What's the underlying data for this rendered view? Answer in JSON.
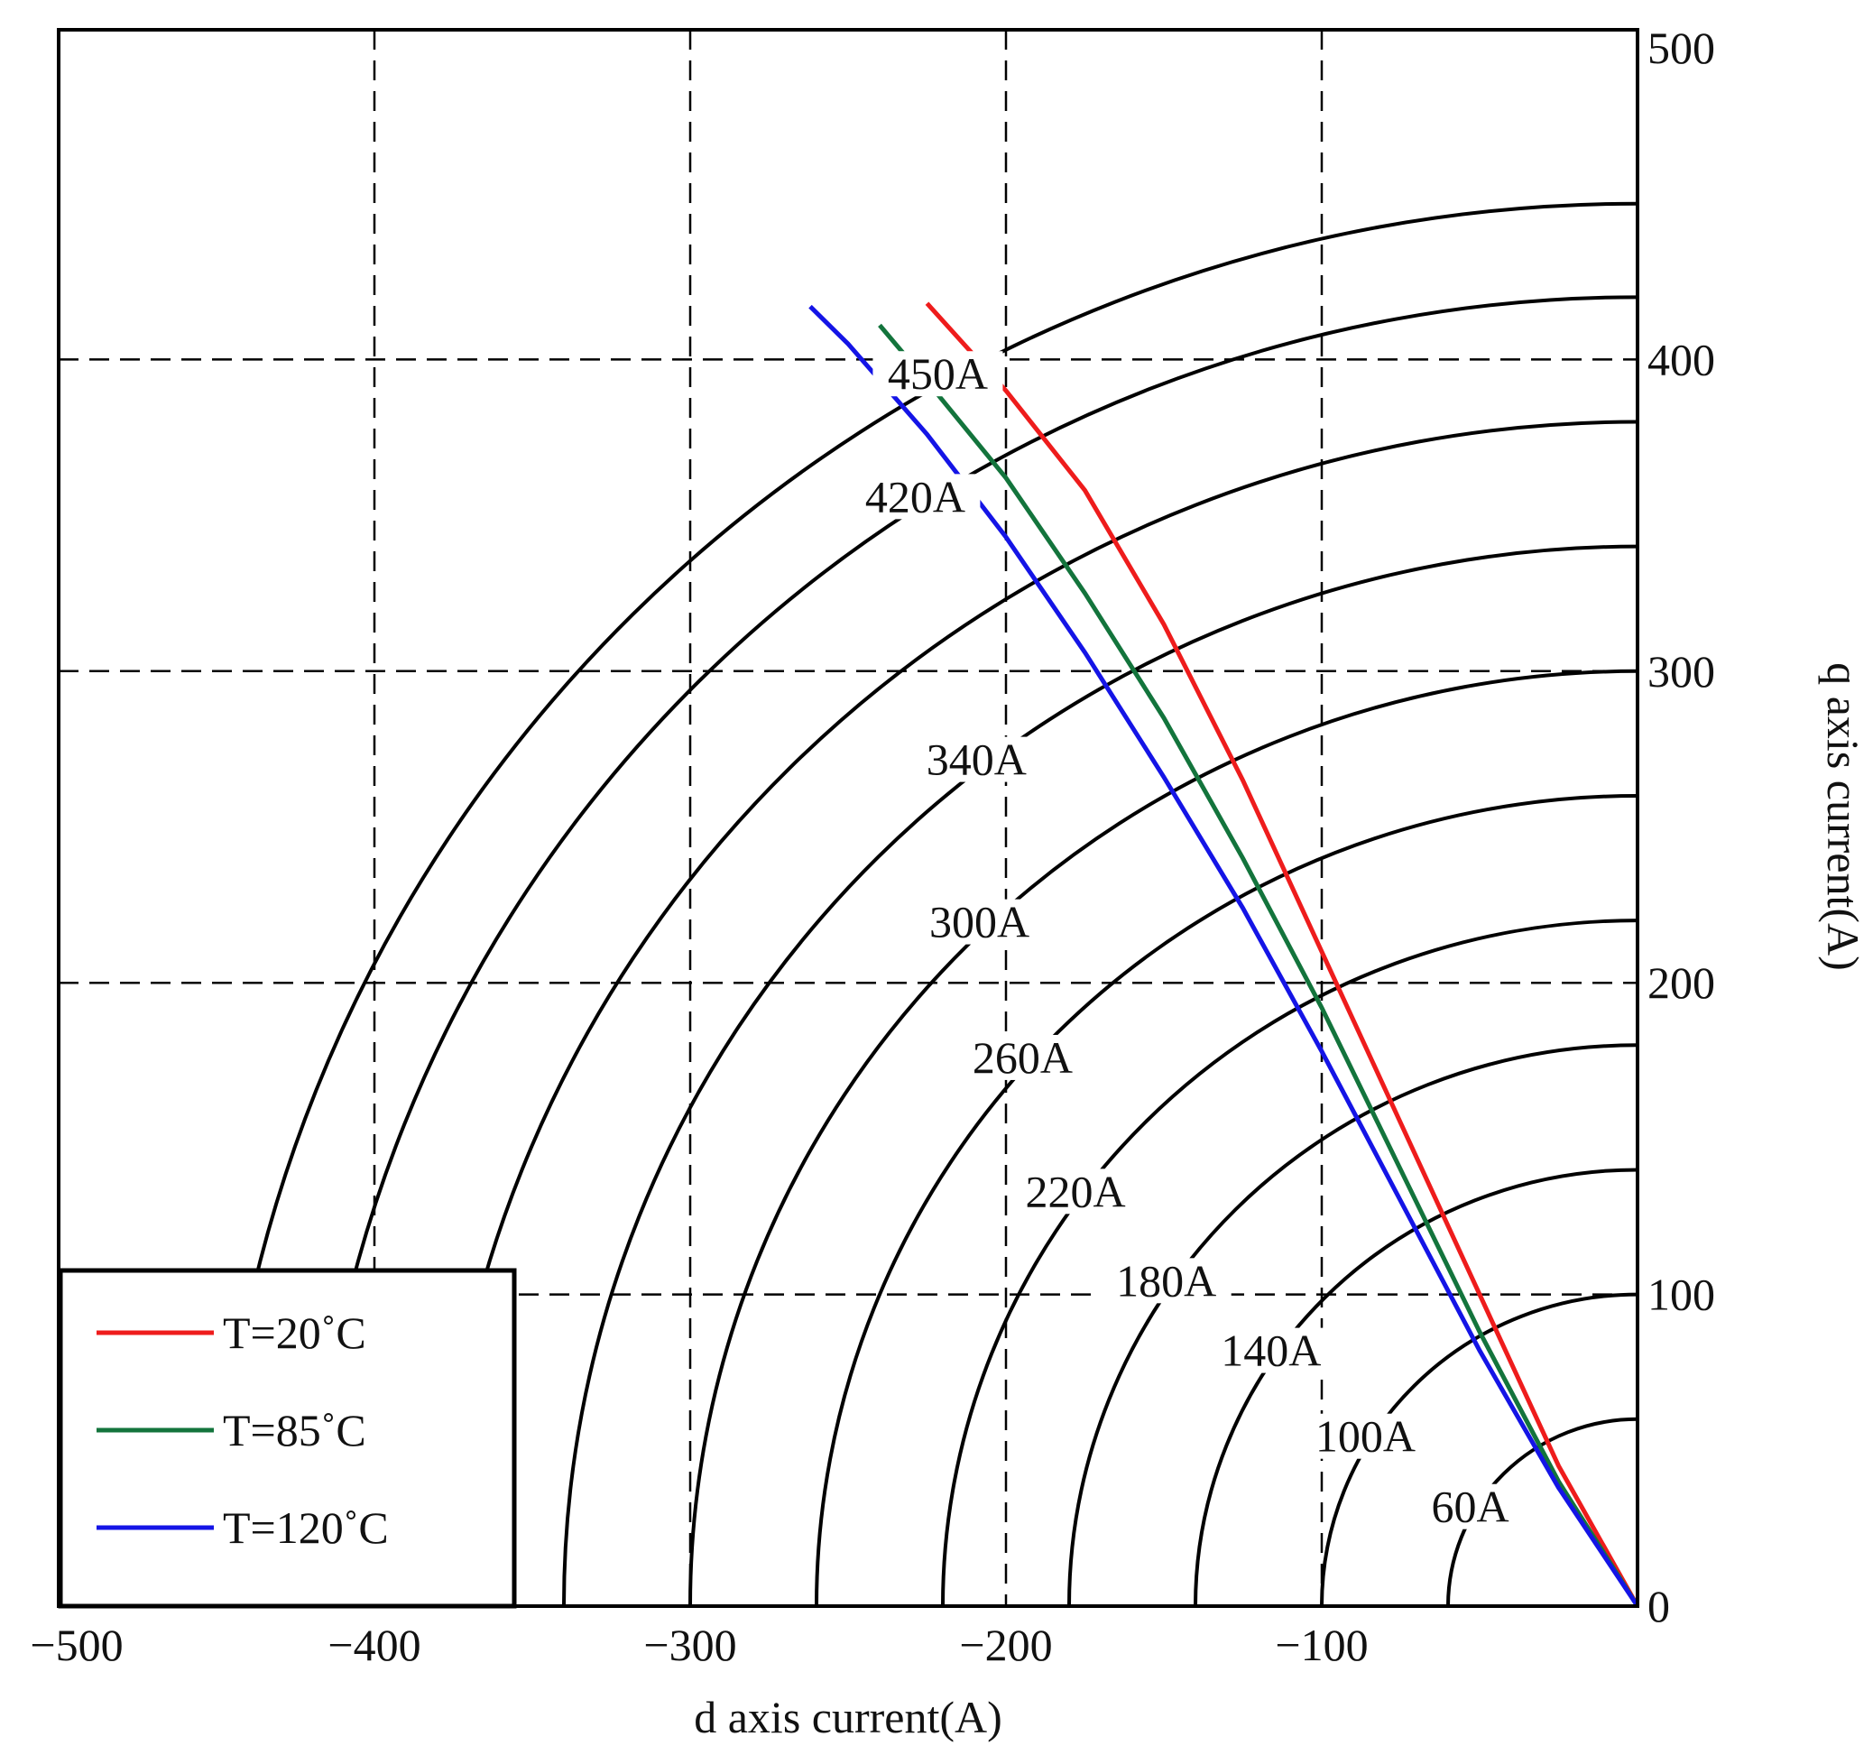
{
  "chart_data": {
    "type": "line",
    "xlabel": "d axis current(A)",
    "ylabel": "q axis current(A)",
    "xlim": [
      -500,
      0
    ],
    "ylim": [
      0,
      500
    ],
    "x_ticks": [
      -500,
      -400,
      -300,
      -200,
      -100
    ],
    "y_ticks": [
      0,
      100,
      200,
      300,
      400,
      500
    ],
    "x_tick_labels": [
      "−500",
      "−400",
      "−300",
      "−200",
      "−100"
    ],
    "y_tick_labels": [
      "0",
      "100",
      "200",
      "300",
      "400",
      "500"
    ],
    "grid": true,
    "y_axis_side": "right",
    "legend": "bottom-left",
    "current_circles": [
      {
        "label": "450A",
        "radius": 450
      },
      {
        "label": "420A",
        "radius": 420
      },
      {
        "label": "",
        "radius": 380
      },
      {
        "label": "340A",
        "radius": 340
      },
      {
        "label": "300A",
        "radius": 300
      },
      {
        "label": "260A",
        "radius": 260
      },
      {
        "label": "220A",
        "radius": 220
      },
      {
        "label": "180A",
        "radius": 180
      },
      {
        "label": "140A",
        "radius": 140
      },
      {
        "label": "100A",
        "radius": 100
      },
      {
        "label": "60A",
        "radius": 60
      }
    ],
    "series": [
      {
        "name": "T=20˚C",
        "color": "#ee1c1c",
        "x": [
          0,
          -25,
          -50,
          -75,
          -100,
          -125,
          -150,
          -175,
          -200,
          -225
        ],
        "y": [
          0,
          45,
          100,
          155,
          210,
          265,
          315,
          358,
          390,
          418
        ]
      },
      {
        "name": "T=85˚C",
        "color": "#13743c",
        "x": [
          0,
          -25,
          -50,
          -75,
          -100,
          -125,
          -150,
          -175,
          -200,
          -225,
          -240
        ],
        "y": [
          0,
          40,
          88,
          140,
          192,
          240,
          285,
          325,
          362,
          393,
          411
        ]
      },
      {
        "name": "T=120˚C",
        "color": "#1414e6",
        "x": [
          0,
          -25,
          -50,
          -75,
          -100,
          -125,
          -150,
          -175,
          -200,
          -225,
          -250,
          -262
        ],
        "y": [
          0,
          38,
          82,
          130,
          178,
          224,
          266,
          306,
          343,
          376,
          405,
          417
        ]
      }
    ]
  }
}
